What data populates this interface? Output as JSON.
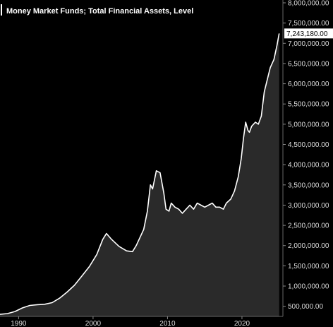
{
  "chart_data": {
    "type": "area",
    "title": "Money Market Funds; Total Financial Assets, Level",
    "colors": {
      "background": "#000000",
      "line": "#ffffff",
      "fill": "#2a2a2a",
      "tick": "#dddddd"
    },
    "last_value_label": "7,243,180.00",
    "last_value": 7243180,
    "ylim": [
      250000,
      8000000
    ],
    "xlim": [
      1987.5,
      2025.5
    ],
    "y_ticks": [
      {
        "value": 500000,
        "label": "500,000.00"
      },
      {
        "value": 1000000,
        "label": "1,000,000.00"
      },
      {
        "value": 1500000,
        "label": "1,500,000.00"
      },
      {
        "value": 2000000,
        "label": "2,000,000.00"
      },
      {
        "value": 2500000,
        "label": "2,500,000.00"
      },
      {
        "value": 3000000,
        "label": "3,000,000.00"
      },
      {
        "value": 3500000,
        "label": "3,500,000.00"
      },
      {
        "value": 4000000,
        "label": "4,000,000.00"
      },
      {
        "value": 4500000,
        "label": "4,500,000.00"
      },
      {
        "value": 5000000,
        "label": "5,000,000.00"
      },
      {
        "value": 5500000,
        "label": "5,500,000.00"
      },
      {
        "value": 6000000,
        "label": "6,000,000.00"
      },
      {
        "value": 6500000,
        "label": "6,500,000.00"
      },
      {
        "value": 7000000,
        "label": "7,000,000.00"
      },
      {
        "value": 7500000,
        "label": "7,500,000.00"
      },
      {
        "value": 8000000,
        "label": "8,000,000.00"
      }
    ],
    "x_ticks": [
      {
        "value": 1990,
        "label": "1990"
      },
      {
        "value": 2000,
        "label": "2000"
      },
      {
        "value": 2010,
        "label": "2010"
      },
      {
        "value": 2020,
        "label": "2020"
      }
    ],
    "series": [
      {
        "points": [
          [
            1987.5,
            300000
          ],
          [
            1988.5,
            320000
          ],
          [
            1989.5,
            370000
          ],
          [
            1990.5,
            460000
          ],
          [
            1991.5,
            520000
          ],
          [
            1992.5,
            540000
          ],
          [
            1993.5,
            550000
          ],
          [
            1994.5,
            590000
          ],
          [
            1995.5,
            700000
          ],
          [
            1996.5,
            850000
          ],
          [
            1997.5,
            1020000
          ],
          [
            1998.5,
            1250000
          ],
          [
            1999.5,
            1480000
          ],
          [
            2000.5,
            1780000
          ],
          [
            2001.3,
            2150000
          ],
          [
            2001.8,
            2300000
          ],
          [
            2002.5,
            2150000
          ],
          [
            2003.5,
            1980000
          ],
          [
            2004.5,
            1870000
          ],
          [
            2005.3,
            1850000
          ],
          [
            2005.8,
            2000000
          ],
          [
            2006.8,
            2400000
          ],
          [
            2007.3,
            2850000
          ],
          [
            2007.7,
            3500000
          ],
          [
            2008.0,
            3400000
          ],
          [
            2008.5,
            3850000
          ],
          [
            2009.0,
            3800000
          ],
          [
            2009.5,
            3300000
          ],
          [
            2009.8,
            2900000
          ],
          [
            2010.2,
            2850000
          ],
          [
            2010.5,
            3050000
          ],
          [
            2011.0,
            2950000
          ],
          [
            2011.5,
            2900000
          ],
          [
            2012.0,
            2800000
          ],
          [
            2012.5,
            2900000
          ],
          [
            2013.0,
            3000000
          ],
          [
            2013.5,
            2900000
          ],
          [
            2014.0,
            3050000
          ],
          [
            2014.5,
            3000000
          ],
          [
            2015.0,
            2950000
          ],
          [
            2015.5,
            3000000
          ],
          [
            2016.0,
            3050000
          ],
          [
            2016.5,
            2950000
          ],
          [
            2017.0,
            2950000
          ],
          [
            2017.5,
            2900000
          ],
          [
            2017.9,
            3050000
          ],
          [
            2018.5,
            3150000
          ],
          [
            2019.0,
            3350000
          ],
          [
            2019.5,
            3700000
          ],
          [
            2019.9,
            4150000
          ],
          [
            2020.2,
            4650000
          ],
          [
            2020.5,
            5050000
          ],
          [
            2020.8,
            4850000
          ],
          [
            2021.0,
            4800000
          ],
          [
            2021.3,
            4950000
          ],
          [
            2021.8,
            5050000
          ],
          [
            2022.2,
            5000000
          ],
          [
            2022.6,
            5200000
          ],
          [
            2023.0,
            5800000
          ],
          [
            2023.4,
            6100000
          ],
          [
            2023.8,
            6400000
          ],
          [
            2024.3,
            6600000
          ],
          [
            2024.7,
            6950000
          ],
          [
            2025.0,
            7243180
          ]
        ]
      }
    ]
  }
}
